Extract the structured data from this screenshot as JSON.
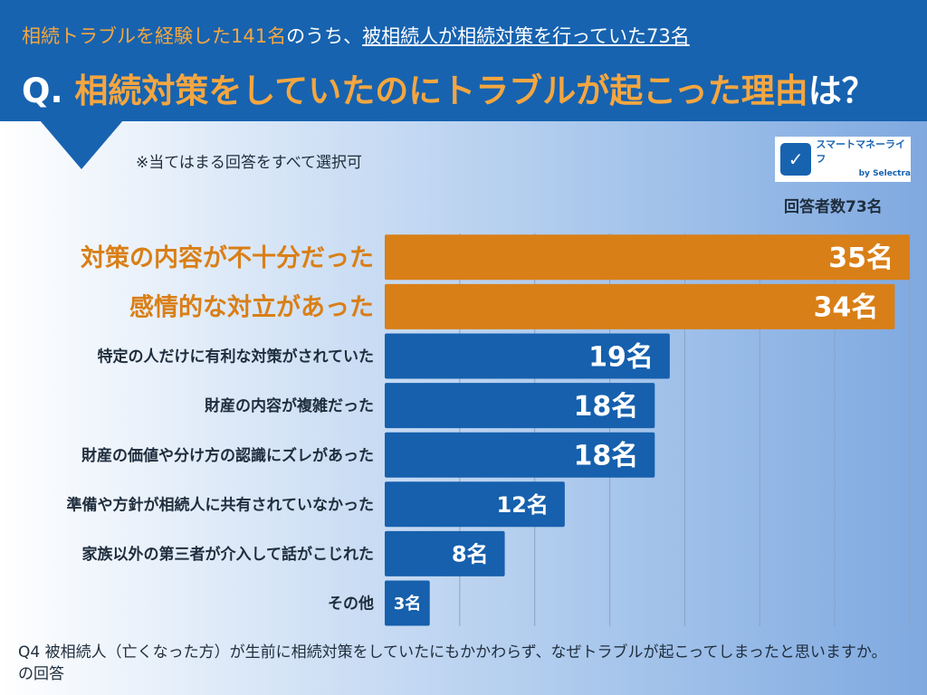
{
  "header": {
    "subtitle_highlight": "相続トラブルを経験した141名",
    "subtitle_mid": "のうち、",
    "subtitle_underlined": "被相続人が相続対策を行っていた73名",
    "q_prefix": "Q.",
    "question": "相続対策をしていたのにトラブルが起こった理由",
    "question_suffix": "は？"
  },
  "note": "※当てはまる回答をすべて選択可",
  "logo": {
    "name": "スマートマネーライフ",
    "by": "by",
    "brand": "Selectra"
  },
  "respondents": "回答者数73名",
  "footer": "Q4 被相続人（亡くなった方）が生前に相続対策をしていたにもかかわらず、なぜトラブルが起こってしまったと思いますか。の回答",
  "colors": {
    "header": "#1763b0",
    "accent": "#d97f17",
    "bar": "#1660ad",
    "accent_text": "#f4a640"
  },
  "chart_data": {
    "type": "bar",
    "orientation": "horizontal",
    "unit": "名",
    "categories": [
      "対策の内容が不十分だった",
      "感情的な対立があった",
      "特定の人だけに有利な対策がされていた",
      "財産の内容が複雑だった",
      "財産の価値や分け方の認識にズレがあった",
      "準備や方針が相続人に共有されていなかった",
      "家族以外の第三者が介入して話がこじれた",
      "その他"
    ],
    "values": [
      35,
      34,
      19,
      18,
      18,
      12,
      8,
      3
    ],
    "labels": [
      "35名",
      "34名",
      "19名",
      "18名",
      "18名",
      "12名",
      "8名",
      "3名"
    ],
    "highlighted": [
      true,
      true,
      false,
      false,
      false,
      false,
      false,
      false
    ],
    "xlim": [
      0,
      35
    ],
    "grid": true,
    "grid_step": 5
  }
}
